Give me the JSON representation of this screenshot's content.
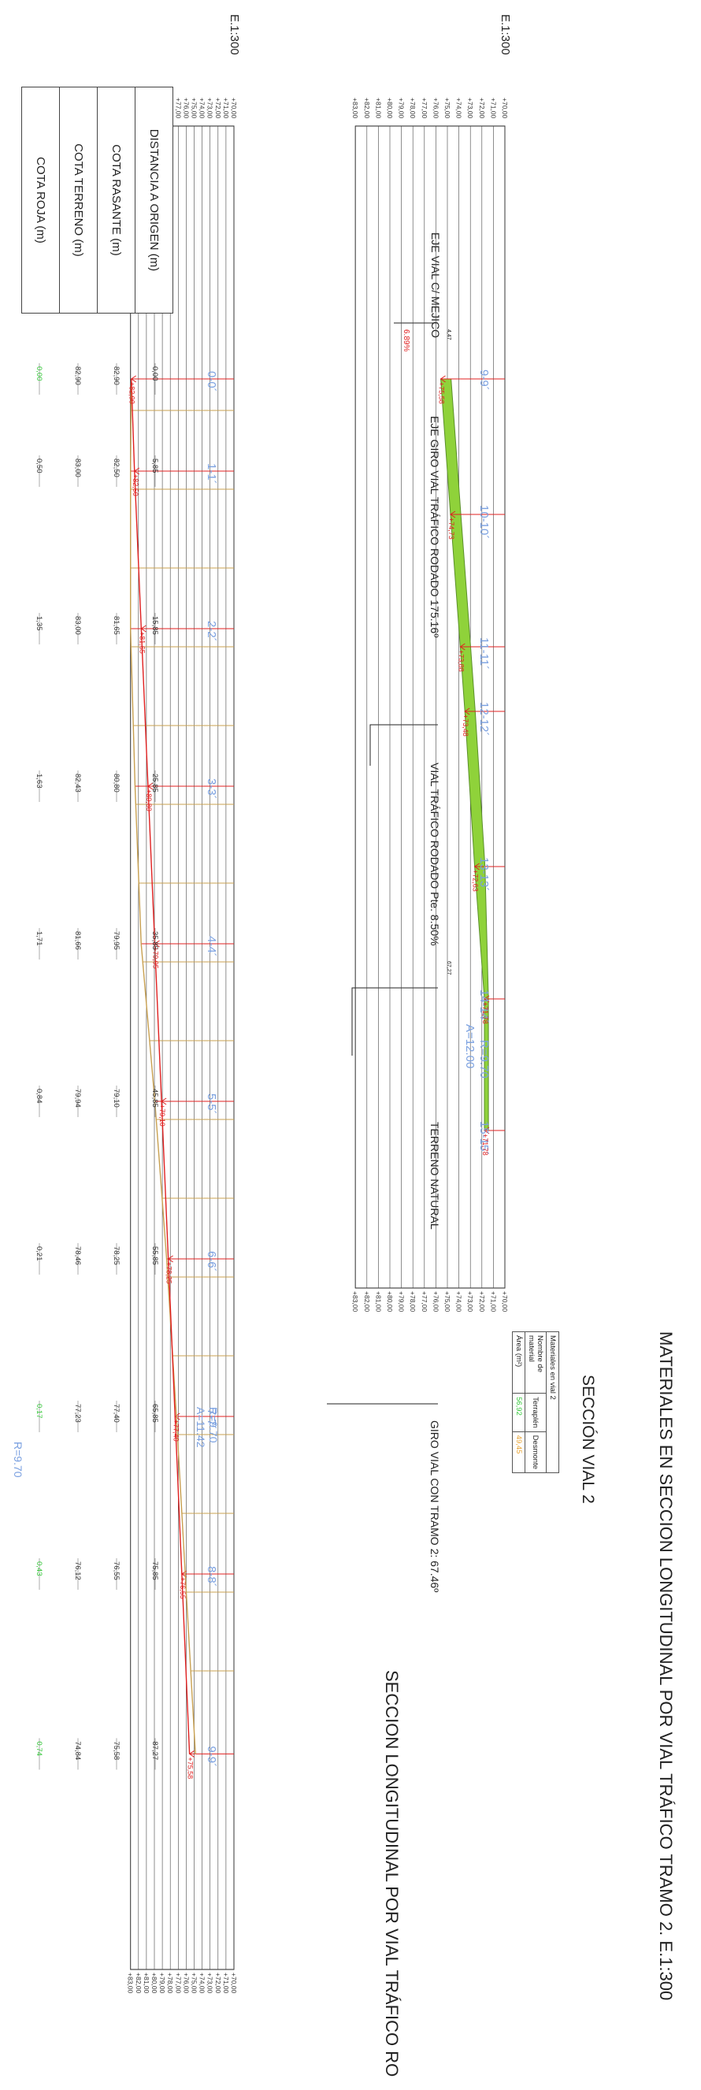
{
  "header": {
    "title": "MATERIALES EN SECCION LONGITUDINAL POR VIAL TRÁFICO TRAMO 2. E.1:300"
  },
  "main_profile": {
    "title": "SECCION LONGITUDINAL POR VIAL TRÁFICO RO",
    "scale_label": "E.1:300",
    "elevation_labels": [
      "+70,00",
      "+71,00",
      "+72,00",
      "+73,00",
      "+74,00",
      "+75,00",
      "+76,00",
      "+77,00",
      "+78,00",
      "+79,00",
      "+80,00",
      "+81,00",
      "+82,00",
      "+83,00"
    ],
    "stations": [
      "0-0´",
      "1-1´",
      "2-2´",
      "3-3´",
      "4-4´",
      "5-5´",
      "6-6´",
      "7-7´",
      "8-8´",
      "9-9´"
    ],
    "elevation_marks": [
      "+82,90",
      "+82,50",
      "+81,65",
      "+80,80",
      "+79,95",
      "+79,10",
      "+78,25",
      "+77,40",
      "+76,55",
      "+75,58"
    ],
    "curve_label": "R=9.70 A=11.42",
    "annotations": [
      {
        "text": "EJE VIAL C/ MEJICO"
      },
      {
        "text": "EJE GIRO VIAL TRÁFICO RODADO 175.16º"
      },
      {
        "text": "VIAL TRÁFICO RODADO Pte. 8.50%"
      },
      {
        "text": "TERRENO NATURAL"
      },
      {
        "text": "GIRO VIAL CON TRAMO 2: 67.46º"
      },
      {
        "text": "6.89%"
      },
      {
        "text": "4,47"
      },
      {
        "text": "67,27"
      }
    ]
  },
  "data_table": {
    "row_labels": [
      "DISTANCIA A ORIGEN (m)",
      "COTA RASANTE (m)",
      "COTA TERRENO (m)",
      "COTA ROJA (m)"
    ],
    "columns": [
      {
        "distancia": "0,00",
        "rasante": "82,90",
        "terreno": "82,90",
        "roja": "0,00",
        "roja_color": "green"
      },
      {
        "distancia": "5,85",
        "rasante": "82,50",
        "terreno": "83,00",
        "roja": "0,50",
        "roja_color": "gray"
      },
      {
        "distancia": "15,85",
        "rasante": "81,65",
        "terreno": "83,00",
        "roja": "1,35",
        "roja_color": "gray"
      },
      {
        "distancia": "25,85",
        "rasante": "80,80",
        "terreno": "82,43",
        "roja": "1,63",
        "roja_color": "gray"
      },
      {
        "distancia": "35,85",
        "rasante": "79,95",
        "terreno": "81,66",
        "roja": "1,71",
        "roja_color": "gray"
      },
      {
        "distancia": "45,85",
        "rasante": "79,10",
        "terreno": "79,94",
        "roja": "0,84",
        "roja_color": "gray"
      },
      {
        "distancia": "55,85",
        "rasante": "78,25",
        "terreno": "78,46",
        "roja": "0,21",
        "roja_color": "gray"
      },
      {
        "distancia": "65,85",
        "rasante": "77,40",
        "terreno": "77,23",
        "roja": "0,17",
        "roja_color": "green"
      },
      {
        "distancia": "75,85",
        "rasante": "76,55",
        "terreno": "76,12",
        "roja": "0,43",
        "roja_color": "green"
      },
      {
        "distancia": "87,27",
        "rasante": "75,58",
        "terreno": "74,84",
        "roja": "0,74",
        "roja_color": "green"
      }
    ],
    "curve_label": "R=9.70"
  },
  "materials_profile": {
    "scale_label": "E.1:300",
    "elevation_labels": [
      "+70,00",
      "+71,00",
      "+72,00",
      "+73,00",
      "+74,00",
      "+75,00",
      "+76,00",
      "+77,00",
      "+78,00",
      "+79,00",
      "+80,00",
      "+81,00",
      "+82,00",
      "+83,00"
    ],
    "stations": [
      "9-9´",
      "10-10´",
      "11-11´",
      "12-12´",
      "13-13´",
      "14-14´",
      "15-15´"
    ],
    "elevation_marks": [
      "+75,58",
      "+74,73",
      "+73,88",
      "+73,48",
      "+72,63",
      "+71,78",
      "+71,78"
    ],
    "curve_label": "R=9.70 A=12.00"
  },
  "materials_table": {
    "section_title": "SECCIÓN VIAL 2",
    "caption": "Materiales en vial 2",
    "header_label": "Nombre de material",
    "area_label": "Área (m²)",
    "materials": [
      {
        "name": "Terraplén",
        "area": "56,92",
        "color": "#35c83a"
      },
      {
        "name": "Desmonte",
        "area": "49,45",
        "color": "#e8a433"
      }
    ]
  },
  "colors": {
    "red": "#e02020",
    "terrain": "#c8a050",
    "blue": "#7aa0e0",
    "green": "#35c83a",
    "green_fill": "#8fd23a",
    "grid": "#333333"
  }
}
